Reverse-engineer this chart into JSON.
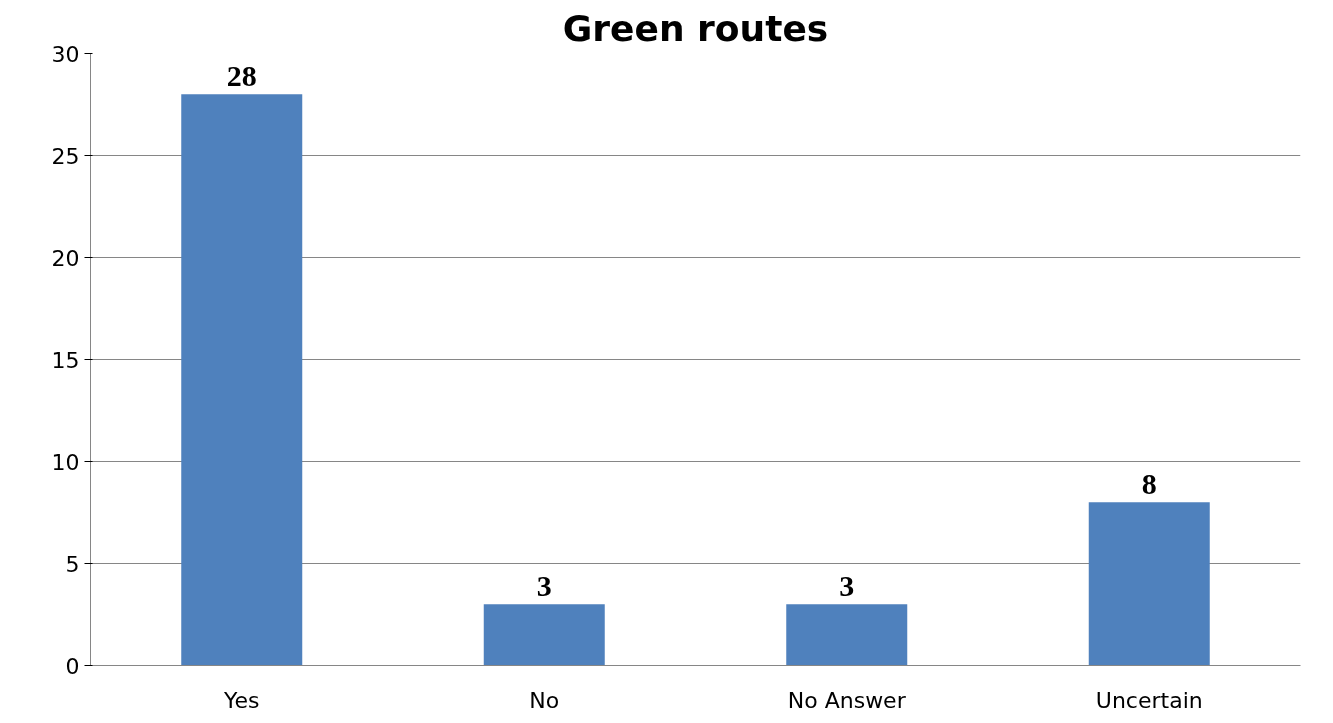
{
  "chart_data": {
    "type": "bar",
    "title": "Green routes",
    "categories": [
      "Yes",
      "No",
      "No Answer",
      "Uncertain"
    ],
    "values": [
      28,
      3,
      3,
      8
    ],
    "color": "#4f81bd",
    "ylim": [
      0,
      30
    ],
    "yticks": [
      0,
      5,
      10,
      15,
      20,
      25,
      30
    ],
    "grid": "y",
    "data_labels": true
  }
}
